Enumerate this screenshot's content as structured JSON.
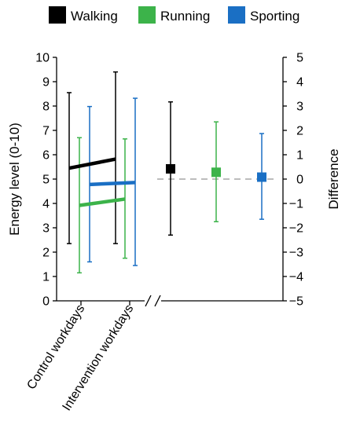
{
  "chart_data": {
    "type": "line",
    "ylabel": "Energy level (0-10)",
    "y2label": "Difference",
    "categories": [
      "Control workdays",
      "Intervention workdays"
    ],
    "ylim": [
      0,
      10
    ],
    "y2lim": [
      -5,
      5
    ],
    "yticks": [
      0,
      1,
      2,
      3,
      4,
      5,
      6,
      7,
      8,
      9,
      10
    ],
    "y2ticks": [
      5,
      4,
      3,
      2,
      1,
      0,
      -1,
      -2,
      -3,
      -4,
      -5
    ],
    "legend_position": "top",
    "series": [
      {
        "name": "Walking",
        "color": "#000000",
        "means": [
          5.45,
          5.82
        ],
        "err_low": [
          2.35,
          2.35
        ],
        "err_high": [
          8.55,
          9.4
        ],
        "difference": 0.42,
        "diff_low": -2.3,
        "diff_high": 3.17
      },
      {
        "name": "Running",
        "color": "#3cb34a",
        "means": [
          3.92,
          4.18
        ],
        "err_low": [
          1.15,
          1.75
        ],
        "err_high": [
          6.7,
          6.65
        ],
        "difference": 0.28,
        "diff_low": -1.75,
        "diff_high": 2.35
      },
      {
        "name": "Sporting",
        "color": "#1a6fc4",
        "means": [
          4.78,
          4.86
        ],
        "err_low": [
          1.6,
          1.45
        ],
        "err_high": [
          7.98,
          8.32
        ],
        "difference": 0.08,
        "diff_low": -1.65,
        "diff_high": 1.87
      }
    ],
    "zero_line_color": "#a6a6a6"
  },
  "legend": {
    "items": [
      "Walking",
      "Running",
      "Sporting"
    ]
  }
}
